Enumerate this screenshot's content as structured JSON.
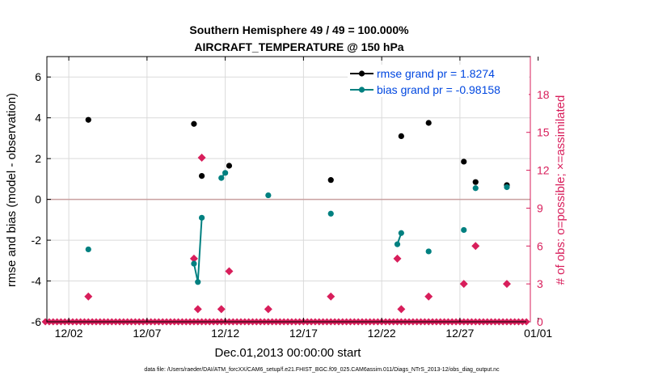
{
  "chart_data": {
    "type": "scatter",
    "title_line1": "Southern Hemisphere 49 / 49 = 100.000%",
    "title_line2": "AIRCRAFT_TEMPERATURE @ 150 hPa",
    "xlabel": "Dec.01,2013 00:00:00 start",
    "ylabel_left": "rmse and bias (model - observation)",
    "ylabel_right": "# of obs: o=possible; ×=assimilated",
    "xlim": [
      0.6,
      31.5
    ],
    "ylim_left": [
      -6,
      7
    ],
    "ylim_right": [
      0,
      21
    ],
    "xticks": [
      2,
      7,
      12,
      17,
      22,
      27,
      32
    ],
    "xtick_labels": [
      "12/02",
      "12/07",
      "12/12",
      "12/17",
      "12/22",
      "12/27",
      "01/01"
    ],
    "yticks_left": [
      -6,
      -4,
      -2,
      0,
      2,
      4,
      6
    ],
    "yticks_left_labels": [
      "-6",
      "-4",
      "-2",
      "0",
      "2",
      "4",
      "6"
    ],
    "yticks_right": [
      0,
      3,
      6,
      9,
      12,
      15,
      18
    ],
    "yticks_right_labels": [
      "0",
      "3",
      "6",
      "9",
      "12",
      "15",
      "18"
    ],
    "colors": {
      "rmse": "#000000",
      "bias": "#008080",
      "obs": "#d81e5b",
      "zero": "#c9a0a0",
      "grid": "#dadada",
      "legend": "#0047e0"
    },
    "series": [
      {
        "name": "rmse grand pr = 1.8274",
        "color": "#000000",
        "points": [
          [
            3.25,
            3.9
          ],
          [
            10.0,
            3.7
          ],
          [
            10.5,
            1.15
          ],
          [
            12.25,
            1.65
          ],
          [
            18.75,
            0.95
          ],
          [
            23.25,
            3.1
          ],
          [
            25.0,
            3.75
          ],
          [
            27.25,
            1.85
          ],
          [
            28.0,
            0.85
          ],
          [
            30.0,
            0.7
          ]
        ]
      },
      {
        "name": "bias grand pr = -0.98158",
        "color": "#008080",
        "points": [
          [
            3.25,
            -2.45
          ],
          [
            10.0,
            -3.15
          ],
          [
            10.25,
            -4.05
          ],
          [
            10.5,
            -0.9
          ],
          [
            11.75,
            1.05
          ],
          [
            12.0,
            1.3
          ],
          [
            14.75,
            0.2
          ],
          [
            18.75,
            -0.7
          ],
          [
            23.0,
            -2.2
          ],
          [
            23.25,
            -1.65
          ],
          [
            25.0,
            -2.55
          ],
          [
            27.25,
            -1.5
          ],
          [
            28.0,
            0.55
          ],
          [
            30.0,
            0.6
          ]
        ]
      }
    ],
    "obs_possible": {
      "x": [
        3.25,
        10.0,
        10.25,
        10.5,
        11.75,
        12.25,
        14.75,
        18.75,
        23.0,
        23.25,
        25.0,
        27.25,
        28.0,
        30.0
      ],
      "y": [
        2,
        5,
        1,
        13,
        1,
        4,
        1,
        2,
        5,
        1,
        2,
        3,
        6,
        3
      ]
    },
    "obs_assimilated": {
      "start": 0.5,
      "end": 31.25,
      "step": 0.25,
      "value": 0
    },
    "footer": "data file: /Users/raeder/DAI/ATM_forcXX/CAM6_setup/f.e21.FHIST_BGC.f09_025.CAM6assim.011/Diags_NTrS_2013-12/obs_diag_output.nc"
  }
}
